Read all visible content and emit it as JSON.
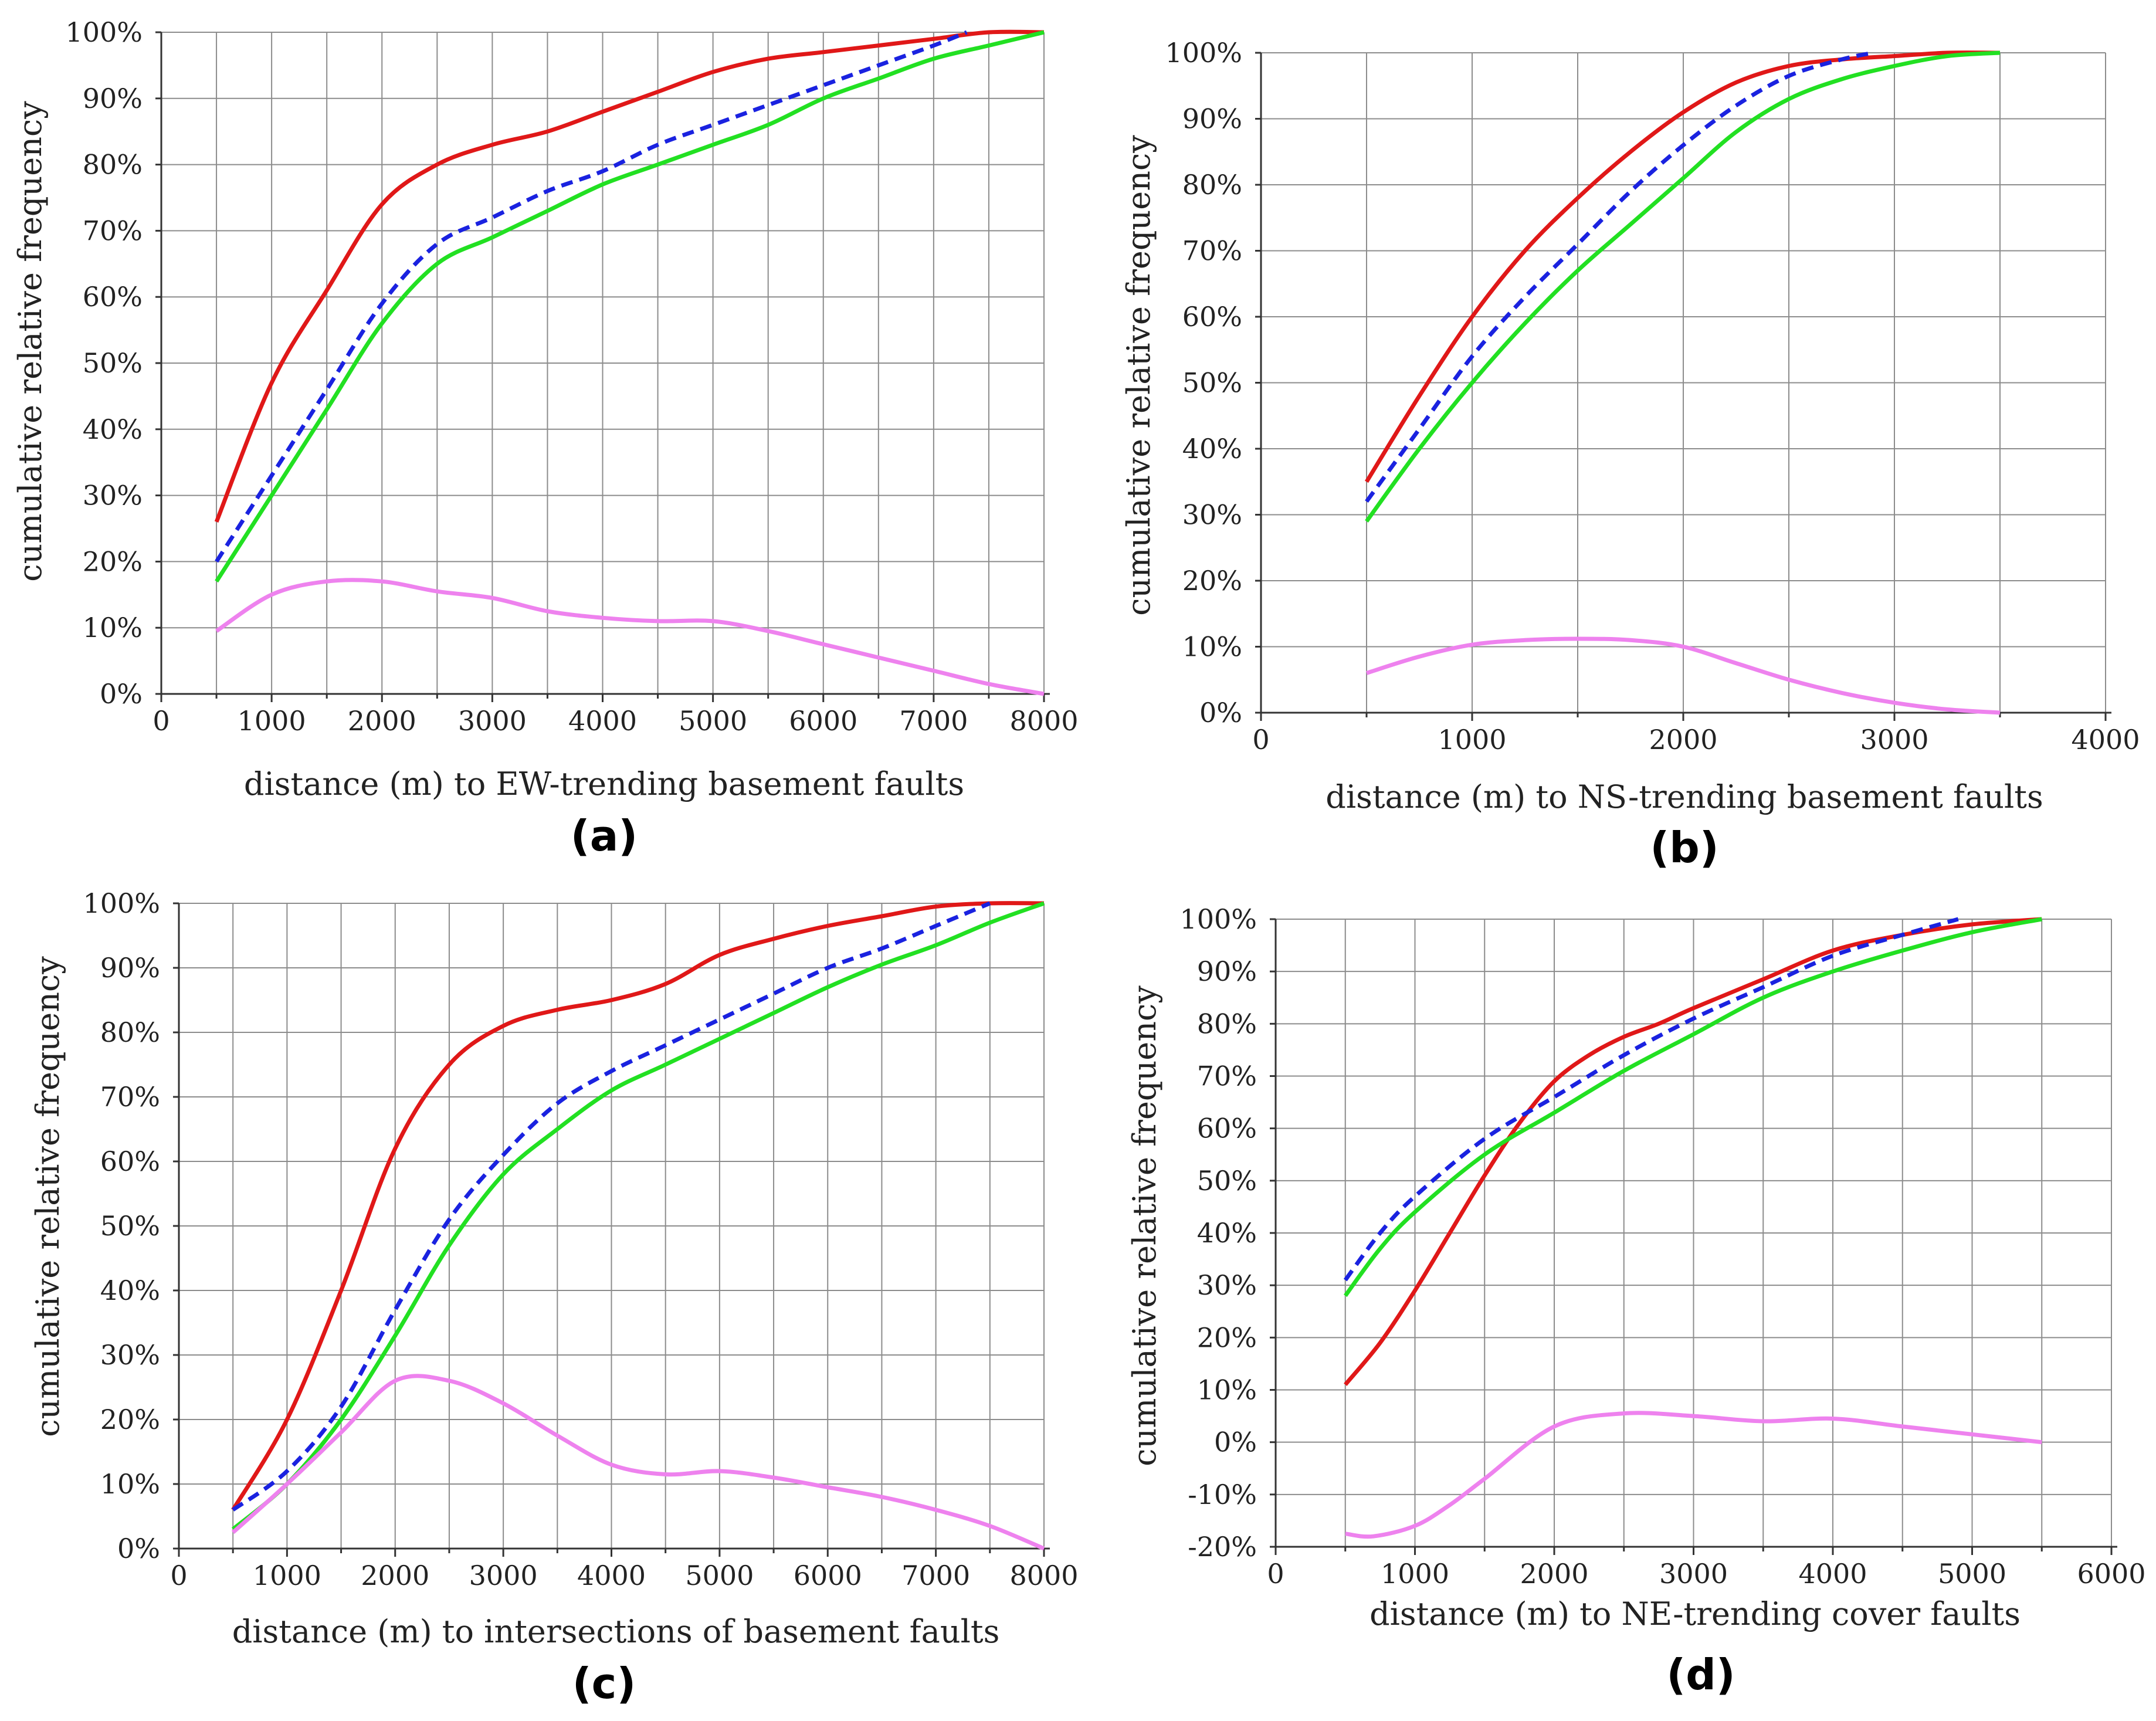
{
  "figure": {
    "colors": {
      "red": "#e01818",
      "blue": "#1a22e0",
      "green": "#22e022",
      "violet": "#ee82ee"
    },
    "panels": [
      {
        "id": "a",
        "panel_label": "(a)",
        "chart_data": {
          "type": "line",
          "xlabel": "distance (m) to EW-trending basement faults",
          "ylabel": "cumulative relative frequency",
          "xlim": [
            0,
            8000
          ],
          "ylim": [
            0,
            100
          ],
          "x_ticks": [
            "0",
            "1000",
            "2000",
            "3000",
            "4000",
            "5000",
            "6000",
            "7000",
            "8000"
          ],
          "y_ticks": [
            "0%",
            "10%",
            "20%",
            "30%",
            "40%",
            "50%",
            "60%",
            "70%",
            "80%",
            "90%",
            "100%"
          ],
          "series": [
            {
              "name": "red",
              "style": "solid",
              "x": [
                500,
                1000,
                1500,
                2000,
                2500,
                3000,
                3500,
                4000,
                4500,
                5000,
                5500,
                6000,
                6500,
                7000,
                7500,
                8000
              ],
              "values": [
                26,
                47,
                61,
                74,
                80,
                83,
                85,
                88,
                91,
                94,
                96,
                97,
                98,
                99,
                100,
                100
              ]
            },
            {
              "name": "blue",
              "style": "dashed",
              "x": [
                500,
                1000,
                1500,
                2000,
                2500,
                3000,
                3500,
                4000,
                4500,
                5000,
                5500,
                6000,
                6500,
                7000,
                7300
              ],
              "values": [
                20,
                33,
                46,
                59,
                68,
                72,
                76,
                79,
                83,
                86,
                89,
                92,
                95,
                98,
                100
              ]
            },
            {
              "name": "green",
              "style": "solid",
              "x": [
                500,
                1000,
                1500,
                2000,
                2500,
                3000,
                3500,
                4000,
                4500,
                5000,
                5500,
                6000,
                6500,
                7000,
                7500,
                8000
              ],
              "values": [
                17,
                30,
                43,
                56,
                65,
                69,
                73,
                77,
                80,
                83,
                86,
                90,
                93,
                96,
                98,
                100
              ]
            },
            {
              "name": "violet",
              "style": "solid",
              "x": [
                500,
                1000,
                1500,
                2000,
                2500,
                3000,
                3500,
                4000,
                4500,
                5000,
                5500,
                6000,
                6500,
                7000,
                7500,
                8000
              ],
              "values": [
                9.5,
                15,
                17,
                17,
                15.5,
                14.5,
                12.5,
                11.5,
                11,
                11,
                9.5,
                7.5,
                5.5,
                3.5,
                1.5,
                0
              ]
            }
          ]
        }
      },
      {
        "id": "b",
        "panel_label": "(b)",
        "chart_data": {
          "type": "line",
          "xlabel": "distance (m) to NS-trending basement faults",
          "ylabel": "cumulative relative frequency",
          "xlim": [
            0,
            4000
          ],
          "ylim": [
            0,
            100
          ],
          "x_ticks": [
            "0",
            "1000",
            "2000",
            "3000",
            "4000"
          ],
          "y_ticks": [
            "0%",
            "10%",
            "20%",
            "30%",
            "40%",
            "50%",
            "60%",
            "70%",
            "80%",
            "90%",
            "100%"
          ],
          "series": [
            {
              "name": "red",
              "style": "solid",
              "x": [
                500,
                750,
                1000,
                1250,
                1500,
                1750,
                2000,
                2250,
                2500,
                2750,
                3000,
                3250,
                3500
              ],
              "values": [
                35,
                48,
                60,
                70,
                78,
                85,
                91,
                95.5,
                98,
                99,
                99.5,
                100,
                100
              ]
            },
            {
              "name": "blue",
              "style": "dashed",
              "x": [
                500,
                750,
                1000,
                1250,
                1500,
                1750,
                2000,
                2250,
                2500,
                2750,
                2900
              ],
              "values": [
                32,
                43,
                54,
                63,
                71,
                79,
                86,
                92,
                96.5,
                99,
                100
              ]
            },
            {
              "name": "green",
              "style": "solid",
              "x": [
                500,
                750,
                1000,
                1250,
                1500,
                1750,
                2000,
                2250,
                2500,
                2750,
                3000,
                3250,
                3500
              ],
              "values": [
                29,
                40,
                50,
                59,
                67,
                74,
                81,
                88,
                93,
                96,
                98,
                99.5,
                100
              ]
            },
            {
              "name": "violet",
              "style": "solid",
              "x": [
                500,
                750,
                1000,
                1250,
                1500,
                1750,
                2000,
                2250,
                2500,
                2750,
                3000,
                3250,
                3500
              ],
              "values": [
                6,
                8.5,
                10.3,
                11,
                11.2,
                11,
                10,
                7.5,
                5,
                3,
                1.5,
                0.5,
                0
              ]
            }
          ]
        }
      },
      {
        "id": "c",
        "panel_label": "(c)",
        "chart_data": {
          "type": "line",
          "xlabel": "distance (m) to intersections of basement faults",
          "ylabel": "cumulative relative frequency",
          "xlim": [
            0,
            8000
          ],
          "ylim": [
            0,
            100
          ],
          "x_ticks": [
            "0",
            "1000",
            "2000",
            "3000",
            "4000",
            "5000",
            "6000",
            "7000",
            "8000"
          ],
          "y_ticks": [
            "0%",
            "10%",
            "20%",
            "30%",
            "40%",
            "50%",
            "60%",
            "70%",
            "80%",
            "90%",
            "100%"
          ],
          "series": [
            {
              "name": "red",
              "style": "solid",
              "x": [
                500,
                1000,
                1500,
                2000,
                2500,
                3000,
                3500,
                4000,
                4500,
                5000,
                5500,
                6000,
                6500,
                7000,
                7500,
                8000
              ],
              "values": [
                6,
                20,
                40,
                62,
                75,
                81,
                83.5,
                85,
                87.5,
                92,
                94.5,
                96.5,
                98,
                99.5,
                100,
                100
              ]
            },
            {
              "name": "blue",
              "style": "dashed",
              "x": [
                500,
                1000,
                1500,
                2000,
                2500,
                3000,
                3500,
                4000,
                4500,
                5000,
                5500,
                6000,
                6500,
                7000,
                7500
              ],
              "values": [
                6,
                12,
                22,
                37,
                51,
                61,
                69,
                74,
                78,
                82,
                86,
                90,
                93,
                96.5,
                100
              ]
            },
            {
              "name": "green",
              "style": "solid",
              "x": [
                500,
                1000,
                1500,
                2000,
                2500,
                3000,
                3500,
                4000,
                4500,
                5000,
                5500,
                6000,
                6500,
                7000,
                7500,
                8000
              ],
              "values": [
                3,
                10,
                20,
                33,
                47,
                58,
                65,
                71,
                75,
                79,
                83,
                87,
                90.5,
                93.5,
                97,
                100
              ]
            },
            {
              "name": "violet",
              "style": "solid",
              "x": [
                500,
                1000,
                1500,
                2000,
                2500,
                3000,
                3500,
                4000,
                4500,
                5000,
                5500,
                6000,
                6500,
                7000,
                7500,
                8000
              ],
              "values": [
                2.5,
                10,
                18,
                26,
                26,
                22.5,
                17.5,
                13,
                11.5,
                12,
                11,
                9.5,
                8,
                6,
                3.5,
                0
              ]
            }
          ]
        }
      },
      {
        "id": "d",
        "panel_label": "(d)",
        "chart_data": {
          "type": "line",
          "xlabel": "distance (m) to NE-trending cover faults",
          "ylabel": "cumulative relative frequency",
          "xlim": [
            0,
            6000
          ],
          "ylim": [
            -20,
            100
          ],
          "x_ticks": [
            "0",
            "1000",
            "2000",
            "3000",
            "4000",
            "5000",
            "6000"
          ],
          "y_ticks": [
            "-20%",
            "-10%",
            "0%",
            "10%",
            "20%",
            "30%",
            "40%",
            "50%",
            "60%",
            "70%",
            "80%",
            "90%",
            "100%"
          ],
          "series": [
            {
              "name": "red",
              "style": "solid",
              "x": [
                500,
                750,
                1000,
                1250,
                1500,
                1750,
                2000,
                2250,
                2500,
                2750,
                3000,
                3500,
                4000,
                4500,
                5000,
                5500
              ],
              "values": [
                11,
                19,
                29,
                40,
                51,
                61,
                69,
                74,
                77.5,
                80,
                83,
                88.5,
                94,
                97,
                99,
                100
              ]
            },
            {
              "name": "blue",
              "style": "dashed",
              "x": [
                500,
                750,
                1000,
                1500,
                2000,
                2500,
                3000,
                3500,
                4000,
                4500,
                4900
              ],
              "values": [
                31,
                40,
                47,
                58,
                66,
                74,
                81,
                87,
                93,
                97,
                100
              ]
            },
            {
              "name": "green",
              "style": "solid",
              "x": [
                500,
                750,
                1000,
                1500,
                2000,
                2500,
                3000,
                3500,
                4000,
                4500,
                5000,
                5500
              ],
              "values": [
                28,
                37,
                44,
                55,
                63,
                71,
                78,
                85,
                90,
                94,
                97.5,
                100
              ]
            },
            {
              "name": "violet",
              "style": "solid",
              "x": [
                500,
                700,
                1000,
                1250,
                1500,
                2000,
                2500,
                3000,
                3500,
                4000,
                4500,
                5000,
                5500
              ],
              "values": [
                -17.5,
                -18,
                -16,
                -12,
                -7,
                3,
                5.5,
                5,
                4,
                4.5,
                3,
                1.5,
                0
              ]
            }
          ]
        }
      }
    ]
  }
}
